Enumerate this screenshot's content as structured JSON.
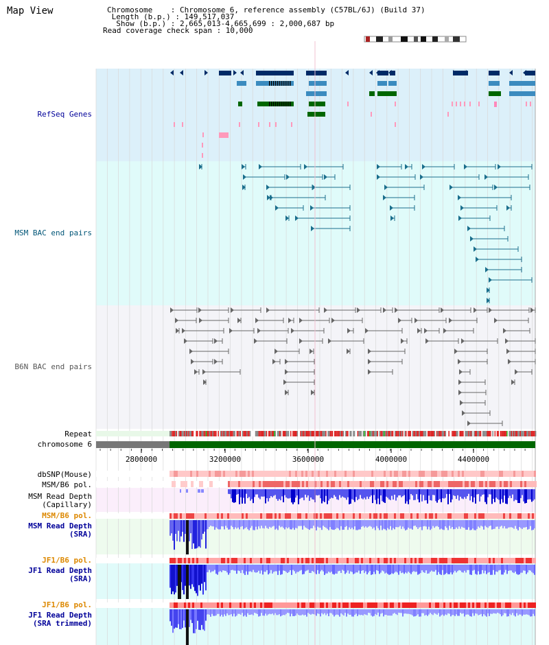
{
  "view_title": "Map View",
  "info": {
    "chromosome_line": "Chromosome    : Chromosome 6, reference assembly (C57BL/6J) (Build 37)",
    "length_line": " Length (b.p.) : 149,517,037",
    "show_line": "  Show (b.p.) : 2,665,013-4,665,699 : 2,000,687 bp",
    "coverage_line": "Read coverage check span : 10,000"
  },
  "tracks": {
    "refseq": "RefSeq Genes",
    "msm_bac": "MSM BAC end pairs",
    "b6n_bac": "B6N BAC end pairs",
    "repeat": "Repeat",
    "chromosome": "chromosome 6",
    "dbsnp": "dbSNP(Mouse)",
    "msm_b6_pol_1": "MSM/B6 pol.",
    "msm_read_depth_cap_1": "MSM Read Depth",
    "msm_read_depth_cap_2": "(Capillary)",
    "msm_b6_pol_2": "MSM/B6 pol.",
    "msm_read_depth_sra_1": "MSM Read Depth",
    "msm_read_depth_sra_2": "(SRA)",
    "jf1_b6_pol_1": "JF1/B6 pol.",
    "jf1_read_depth_sra_1": "JF1 Read Depth",
    "jf1_read_depth_sra_2": "(SRA)",
    "jf1_b6_pol_2": "JF1/B6 pol.",
    "jf1_read_depth_trim_1": "JF1 Read Depth",
    "jf1_read_depth_trim_2": "(SRA trimmed)"
  },
  "axis": {
    "ticks": [
      "2800000",
      "3200000",
      "3600000",
      "4000000",
      "4400000"
    ]
  },
  "colors": {
    "refseq_bg": "#dcf0fa",
    "msm_bac_bg": "#e0fbfa",
    "b6n_bac_bg": "#f4f4f8",
    "gene_dark": "#002a66",
    "gene_mid": "#3b8bbf",
    "gene_green": "#006600",
    "bac_msm": "#1a6e8c",
    "bac_b6n": "#666666",
    "chromosome_green": "#006600",
    "read_depth_dark": "#0000dd",
    "read_depth_light": "#8080ff",
    "label_blue": "#000099",
    "label_teal": "#005577",
    "label_orange": "#dd8800"
  }
}
